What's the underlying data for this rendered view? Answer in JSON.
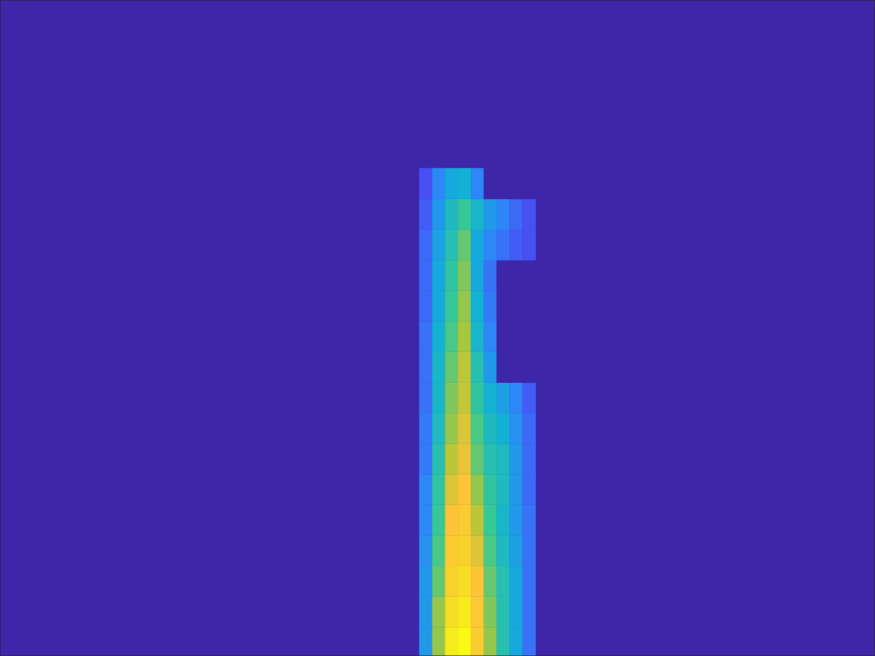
{
  "chart_data": {
    "type": "heatmap",
    "xlim": [
      0,
      6.78
    ],
    "ylim": [
      0.28,
      11
    ],
    "xticks": [
      1,
      2,
      3,
      4,
      5,
      6
    ],
    "yticks": [
      1,
      2,
      3,
      4,
      5,
      6,
      7,
      8,
      9,
      10
    ],
    "tick_labels": false,
    "zlim": [
      0,
      1
    ],
    "x": [
      3.3,
      3.4,
      3.5,
      3.6,
      3.7,
      3.8,
      3.9,
      4.0,
      4.1
    ],
    "y": [
      0.5,
      1.0,
      1.5,
      2.0,
      2.5,
      3.0,
      3.5,
      4.0,
      4.5,
      5.0,
      5.5,
      6.0,
      6.5,
      7.0,
      7.5,
      8.0
    ],
    "z": [
      [
        0.3,
        0.6,
        0.95,
        1.0,
        0.8,
        0.6,
        0.45,
        0.35,
        0.2
      ],
      [
        0.3,
        0.6,
        0.9,
        0.95,
        0.78,
        0.58,
        0.45,
        0.35,
        0.2
      ],
      [
        0.3,
        0.55,
        0.85,
        0.9,
        0.75,
        0.55,
        0.45,
        0.35,
        0.2
      ],
      [
        0.28,
        0.52,
        0.8,
        0.85,
        0.7,
        0.52,
        0.42,
        0.32,
        0.2
      ],
      [
        0.25,
        0.5,
        0.75,
        0.8,
        0.65,
        0.5,
        0.4,
        0.3,
        0.2
      ],
      [
        0.25,
        0.48,
        0.7,
        0.76,
        0.6,
        0.48,
        0.42,
        0.3,
        0.18
      ],
      [
        0.22,
        0.45,
        0.65,
        0.72,
        0.55,
        0.45,
        0.42,
        0.3,
        0.18
      ],
      [
        0.22,
        0.42,
        0.6,
        0.7,
        0.52,
        0.42,
        0.38,
        0.28,
        0.18
      ],
      [
        0.2,
        0.4,
        0.58,
        0.66,
        0.48,
        0.38,
        0.32,
        0.25,
        0.15
      ],
      [
        0.2,
        0.4,
        0.55,
        0.65,
        0.45,
        0.3,
        0,
        0,
        0
      ],
      [
        0.2,
        0.38,
        0.52,
        0.62,
        0.4,
        0.25,
        0,
        0,
        0
      ],
      [
        0.18,
        0.35,
        0.5,
        0.6,
        0.38,
        0.22,
        0,
        0,
        0
      ],
      [
        0.18,
        0.35,
        0.48,
        0.58,
        0.35,
        0.2,
        0,
        0,
        0
      ],
      [
        0.18,
        0.33,
        0.45,
        0.55,
        0.35,
        0.25,
        0.2,
        0.15,
        0.12
      ],
      [
        0.15,
        0.3,
        0.42,
        0.5,
        0.4,
        0.3,
        0.25,
        0.18,
        0.12
      ],
      [
        0.12,
        0.25,
        0.35,
        0.38,
        0.25,
        0,
        0,
        0,
        0
      ]
    ]
  }
}
